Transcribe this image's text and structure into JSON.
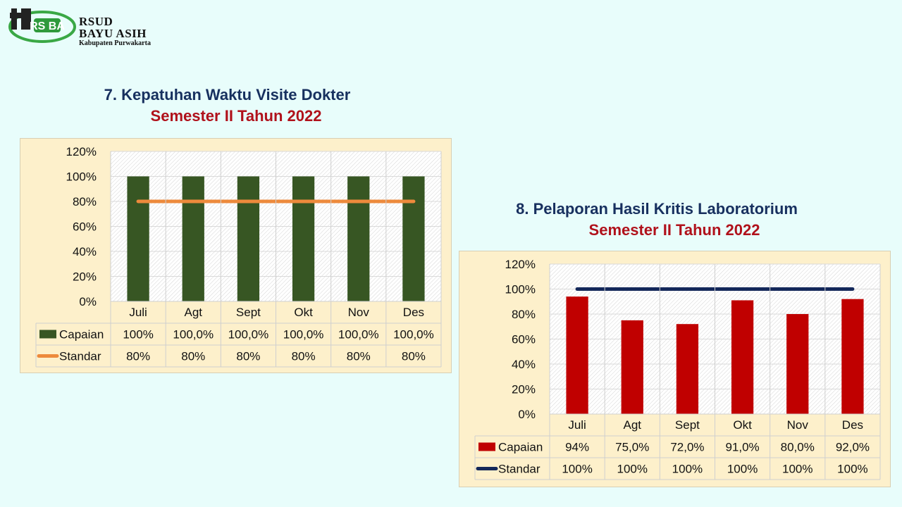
{
  "logo": {
    "mark": "RS BA",
    "line1": "RSUD",
    "line2": "BAYU ASIH",
    "line3": "Kabupaten Purwakarta"
  },
  "chart1": {
    "title": "7. Kepatuhan Waktu Visite Dokter",
    "subtitle": "Semester II Tahun 2022"
  },
  "chart2": {
    "title": "8. Pelaporan Hasil Kritis Laboratorium",
    "subtitle": "Semester II Tahun 2022"
  },
  "chart_data": [
    {
      "type": "bar",
      "title": "7. Kepatuhan Waktu Visite Dokter",
      "subtitle": "Semester II Tahun 2022",
      "categories": [
        "Juli",
        "Agt",
        "Sept",
        "Okt",
        "Nov",
        "Des"
      ],
      "yticks": [
        "0%",
        "20%",
        "40%",
        "60%",
        "80%",
        "100%",
        "120%"
      ],
      "ylim": [
        0,
        120
      ],
      "grid": true,
      "legend": "data-table",
      "series": [
        {
          "name": "Capaian",
          "kind": "bar",
          "color": "#375623",
          "values": [
            100,
            100,
            100,
            100,
            100,
            100
          ],
          "labels": [
            "100%",
            "100,0%",
            "100,0%",
            "100,0%",
            "100,0%",
            "100,0%"
          ]
        },
        {
          "name": "Standar",
          "kind": "line",
          "color": "#ed8a3c",
          "values": [
            80,
            80,
            80,
            80,
            80,
            80
          ],
          "labels": [
            "80%",
            "80%",
            "80%",
            "80%",
            "80%",
            "80%"
          ]
        }
      ]
    },
    {
      "type": "bar",
      "title": "8. Pelaporan Hasil Kritis Laboratorium",
      "subtitle": "Semester II Tahun 2022",
      "categories": [
        "Juli",
        "Agt",
        "Sept",
        "Okt",
        "Nov",
        "Des"
      ],
      "yticks": [
        "0%",
        "20%",
        "40%",
        "60%",
        "80%",
        "100%",
        "120%"
      ],
      "ylim": [
        0,
        120
      ],
      "grid": true,
      "legend": "data-table",
      "series": [
        {
          "name": "Capaian",
          "kind": "bar",
          "color": "#c00000",
          "values": [
            94,
            75,
            72,
            91,
            80,
            92
          ],
          "labels": [
            "94%",
            "75,0%",
            "72,0%",
            "91,0%",
            "80,0%",
            "92,0%"
          ]
        },
        {
          "name": "Standar",
          "kind": "line",
          "color": "#14285a",
          "values": [
            100,
            100,
            100,
            100,
            100,
            100
          ],
          "labels": [
            "100%",
            "100%",
            "100%",
            "100%",
            "100%",
            "100%"
          ]
        }
      ]
    }
  ]
}
